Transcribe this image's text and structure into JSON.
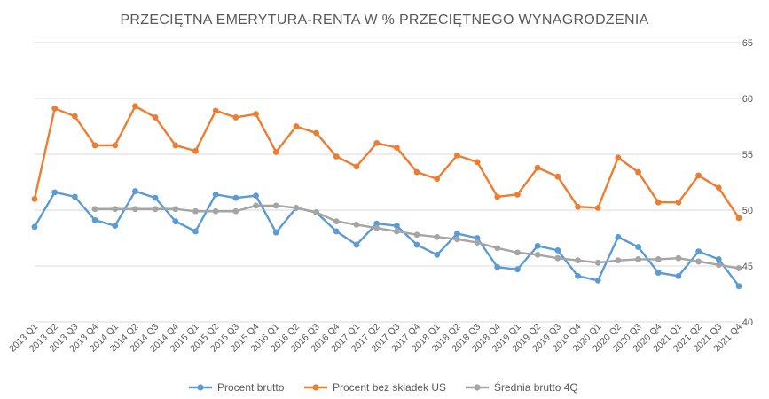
{
  "chart_data": {
    "type": "line",
    "title": "PRZECIĘTNA EMERYTURA-RENTA W % PRZECIĘTNEGO WYNAGRODZENIA",
    "xlabel": "",
    "ylabel": "",
    "ylim": [
      40,
      65
    ],
    "yticks": [
      "40",
      "45",
      "50",
      "55",
      "60",
      "65"
    ],
    "y_axis_side": "right",
    "grid": true,
    "legend_position": "bottom",
    "categories": [
      "2013 Q1",
      "2013 Q2",
      "2013 Q3",
      "2013 Q4",
      "2014 Q1",
      "2014 Q2",
      "2014 Q3",
      "2014 Q4",
      "2015 Q1",
      "2015 Q2",
      "2015 Q3",
      "2015 Q4",
      "2016 Q1",
      "2016 Q2",
      "2016 Q3",
      "2016 Q4",
      "2017 Q1",
      "2017 Q2",
      "2017 Q3",
      "2017 Q4",
      "2018 Q1",
      "2018 Q2",
      "2018 Q3",
      "2018 Q4",
      "2019 Q1",
      "2019 Q2",
      "2019 Q3",
      "2019 Q4",
      "2020 Q1",
      "2020 Q2",
      "2020 Q3",
      "2020 Q4",
      "2021 Q1",
      "2021 Q2",
      "2021 Q3",
      "2021 Q4"
    ],
    "series": [
      {
        "name": "Procent brutto",
        "color": "#5b9bd5",
        "values": [
          48.5,
          51.6,
          51.2,
          49.1,
          48.6,
          51.7,
          51.1,
          49.0,
          48.1,
          51.4,
          51.1,
          51.3,
          48.0,
          50.2,
          49.8,
          48.1,
          46.9,
          48.8,
          48.6,
          46.9,
          46.0,
          47.9,
          47.5,
          44.9,
          44.7,
          46.8,
          46.4,
          44.1,
          43.7,
          47.6,
          46.7,
          44.4,
          44.1,
          46.3,
          45.6,
          43.2
        ]
      },
      {
        "name": "Procent bez składek US",
        "color": "#ed7d31",
        "values": [
          51.0,
          59.1,
          58.4,
          55.8,
          55.8,
          59.3,
          58.3,
          55.8,
          55.3,
          58.9,
          58.3,
          58.6,
          55.2,
          57.5,
          56.9,
          54.8,
          53.9,
          56.0,
          55.6,
          53.4,
          52.8,
          54.9,
          54.3,
          51.2,
          51.4,
          53.8,
          53.0,
          50.3,
          50.2,
          54.7,
          53.4,
          50.7,
          50.7,
          53.1,
          52.0,
          49.3
        ]
      },
      {
        "name": "Średnia brutto  4Q",
        "color": "#a5a5a5",
        "values": [
          null,
          null,
          null,
          50.1,
          50.1,
          50.1,
          50.1,
          50.1,
          49.9,
          49.9,
          49.9,
          50.4,
          50.4,
          50.2,
          49.8,
          49.0,
          48.7,
          48.4,
          48.1,
          47.8,
          47.6,
          47.4,
          47.1,
          46.6,
          46.2,
          46.0,
          45.7,
          45.5,
          45.3,
          45.5,
          45.6,
          45.6,
          45.7,
          45.4,
          45.1,
          44.8
        ]
      }
    ]
  }
}
